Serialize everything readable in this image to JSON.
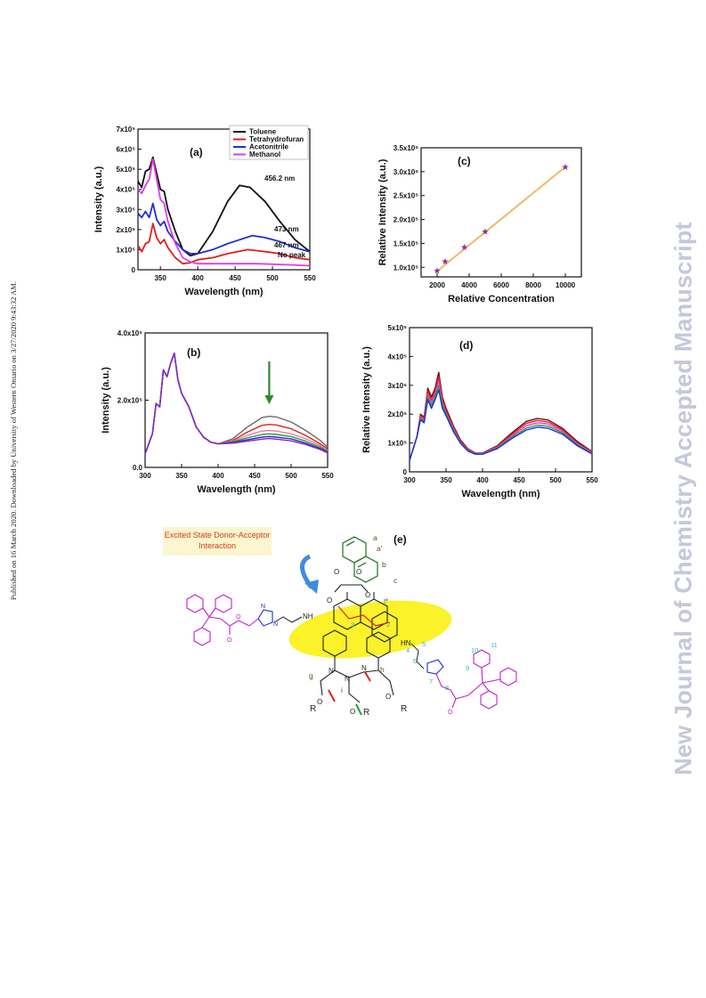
{
  "side_note": "Published on 16 March 2020. Downloaded by University of Western Ontario on 3/27/2020 9:43:32 AM.",
  "watermark": "New Journal of Chemistry Accepted Manuscript",
  "colors": {
    "toluene": "#111111",
    "thf": "#e0201b",
    "acetonitrile": "#1f2fd1",
    "methanol": "#e23be3",
    "linefit": "#f2b867",
    "star": "#8d2a9a",
    "highlight": "#fbf22a",
    "magenta_struct": "#c41fc9",
    "cyan_label": "#2bbcc7"
  },
  "chart_data": [
    {
      "panel": "(a)",
      "type": "line",
      "xlabel": "Wavelength (nm)",
      "ylabel": "Intensity (a.u.)",
      "xlim": [
        320,
        550
      ],
      "ylim": [
        0,
        7
      ],
      "xticks": [
        350,
        400,
        450,
        500,
        550
      ],
      "yticks": [
        0,
        1,
        2,
        3,
        4,
        5,
        6,
        7
      ],
      "ytick_labels": [
        "0",
        "1x10⁵",
        "2x10⁵",
        "3x10⁵",
        "4x10⁵",
        "5x10⁵",
        "6x10⁵",
        "7x10⁵"
      ],
      "legend": [
        "Toluene",
        "Tetrahydrofuran",
        "Acetonitrile",
        "Methanol"
      ],
      "legend_position": "top-center",
      "annotations": [
        "456.2 nm",
        "473 nm",
        "467 nm",
        "No peak"
      ],
      "series": [
        {
          "name": "Toluene",
          "x": [
            320,
            325,
            330,
            335,
            340,
            345,
            350,
            355,
            360,
            370,
            380,
            390,
            400,
            420,
            440,
            456,
            470,
            490,
            510,
            530,
            550
          ],
          "y": [
            4.4,
            4.1,
            4.9,
            5.0,
            5.6,
            4.8,
            4.0,
            3.9,
            3.0,
            1.9,
            1.0,
            0.7,
            0.8,
            1.9,
            3.4,
            4.2,
            4.1,
            3.4,
            2.4,
            1.5,
            0.9
          ]
        },
        {
          "name": "Tetrahydrofuran",
          "x": [
            320,
            325,
            330,
            335,
            340,
            345,
            350,
            355,
            360,
            370,
            380,
            390,
            400,
            420,
            440,
            467,
            490,
            510,
            530,
            550
          ],
          "y": [
            1.2,
            0.9,
            1.3,
            1.4,
            2.3,
            1.6,
            1.3,
            1.5,
            1.1,
            0.6,
            0.3,
            0.35,
            0.5,
            0.6,
            0.8,
            1.0,
            0.9,
            0.8,
            0.6,
            0.5
          ]
        },
        {
          "name": "Acetonitrile",
          "x": [
            320,
            325,
            330,
            335,
            340,
            345,
            350,
            355,
            360,
            370,
            380,
            390,
            400,
            420,
            440,
            473,
            490,
            510,
            530,
            550
          ],
          "y": [
            2.8,
            2.6,
            2.9,
            2.6,
            3.3,
            2.5,
            2.2,
            2.4,
            1.9,
            1.4,
            1.0,
            0.8,
            0.8,
            1.0,
            1.3,
            1.7,
            1.6,
            1.4,
            1.1,
            0.9
          ]
        },
        {
          "name": "Methanol",
          "x": [
            320,
            325,
            330,
            335,
            340,
            345,
            350,
            355,
            360,
            370,
            380,
            390,
            400,
            440,
            480,
            520,
            550
          ],
          "y": [
            4.0,
            3.8,
            4.2,
            4.5,
            5.5,
            4.5,
            3.5,
            3.3,
            2.4,
            1.3,
            0.6,
            0.4,
            0.3,
            0.3,
            0.3,
            0.25,
            0.2
          ]
        }
      ]
    },
    {
      "panel": "(b)",
      "type": "line",
      "xlabel": "Wavelength (nm)",
      "ylabel": "Intensity (a.u.)",
      "xlim": [
        300,
        550
      ],
      "ylim": [
        0,
        4
      ],
      "xticks": [
        300,
        350,
        400,
        450,
        500,
        550
      ],
      "yticks": [
        0,
        2,
        4
      ],
      "ytick_labels": [
        "0.0",
        "2.0x10⁵",
        "4.0x10⁵"
      ],
      "annotations": [
        "downward arrow at 470 nm"
      ],
      "series": [
        {
          "x": [
            300,
            310,
            315,
            320,
            325,
            330,
            335,
            340,
            345,
            350,
            360,
            370,
            380,
            390,
            400,
            420,
            440,
            460,
            470,
            480,
            500,
            520,
            540,
            550
          ],
          "y": [
            0.4,
            1.0,
            1.9,
            1.8,
            2.9,
            2.7,
            3.1,
            3.4,
            2.6,
            2.2,
            1.8,
            1.2,
            0.9,
            0.75,
            0.7,
            0.85,
            1.2,
            1.48,
            1.52,
            1.5,
            1.35,
            1.1,
            0.8,
            0.6
          ]
        },
        {
          "x": [
            300,
            310,
            315,
            320,
            325,
            330,
            335,
            340,
            345,
            350,
            360,
            370,
            380,
            390,
            400,
            420,
            440,
            460,
            470,
            480,
            500,
            520,
            540,
            550
          ],
          "y": [
            0.4,
            1.0,
            1.9,
            1.8,
            2.9,
            2.7,
            3.1,
            3.4,
            2.6,
            2.2,
            1.8,
            1.2,
            0.9,
            0.75,
            0.7,
            0.8,
            1.05,
            1.25,
            1.28,
            1.26,
            1.15,
            0.95,
            0.7,
            0.55
          ]
        },
        {
          "x": [
            300,
            310,
            315,
            320,
            325,
            330,
            335,
            340,
            345,
            350,
            360,
            370,
            380,
            390,
            400,
            420,
            440,
            460,
            470,
            480,
            500,
            520,
            540,
            550
          ],
          "y": [
            0.4,
            1.0,
            1.9,
            1.8,
            2.9,
            2.7,
            3.1,
            3.4,
            2.6,
            2.2,
            1.8,
            1.2,
            0.9,
            0.75,
            0.7,
            0.78,
            0.95,
            1.08,
            1.1,
            1.08,
            1.0,
            0.85,
            0.65,
            0.5
          ]
        },
        {
          "x": [
            300,
            310,
            315,
            320,
            325,
            330,
            335,
            340,
            345,
            350,
            360,
            370,
            380,
            390,
            400,
            420,
            440,
            460,
            470,
            480,
            500,
            520,
            540,
            550
          ],
          "y": [
            0.4,
            1.0,
            1.9,
            1.8,
            2.9,
            2.7,
            3.1,
            3.4,
            2.6,
            2.2,
            1.8,
            1.2,
            0.9,
            0.75,
            0.7,
            0.76,
            0.88,
            0.98,
            1.0,
            0.98,
            0.92,
            0.78,
            0.6,
            0.48
          ]
        },
        {
          "x": [
            300,
            310,
            315,
            320,
            325,
            330,
            335,
            340,
            345,
            350,
            360,
            370,
            380,
            390,
            400,
            420,
            440,
            460,
            470,
            480,
            500,
            520,
            540,
            550
          ],
          "y": [
            0.4,
            1.0,
            1.9,
            1.8,
            2.9,
            2.7,
            3.1,
            3.4,
            2.6,
            2.2,
            1.8,
            1.2,
            0.9,
            0.75,
            0.7,
            0.74,
            0.82,
            0.9,
            0.92,
            0.9,
            0.85,
            0.72,
            0.56,
            0.45
          ]
        },
        {
          "x": [
            300,
            310,
            315,
            320,
            325,
            330,
            335,
            340,
            345,
            350,
            360,
            370,
            380,
            390,
            400,
            420,
            440,
            460,
            470,
            480,
            500,
            520,
            540,
            550
          ],
          "y": [
            0.4,
            1.0,
            1.9,
            1.8,
            2.9,
            2.7,
            3.1,
            3.4,
            2.6,
            2.2,
            1.8,
            1.2,
            0.9,
            0.75,
            0.7,
            0.72,
            0.78,
            0.84,
            0.86,
            0.84,
            0.79,
            0.68,
            0.53,
            0.43
          ]
        }
      ],
      "series_colors": [
        "#6b6b6b",
        "#e0201b",
        "#e87aa8",
        "#2b9c35",
        "#1f2fd1",
        "#8c26c2"
      ]
    },
    {
      "panel": "(c)",
      "type": "scatter",
      "xlabel": "Relative Concentration",
      "ylabel": "Relative Intensity (a.u.)",
      "xlim": [
        1000,
        11000
      ],
      "ylim": [
        0.8,
        3.5
      ],
      "xticks": [
        2000,
        4000,
        6000,
        8000,
        10000
      ],
      "yticks": [
        1.0,
        1.5,
        2.0,
        2.5,
        3.0,
        3.5
      ],
      "ytick_labels": [
        "1.0x10⁵",
        "1.5x10⁵",
        "2.0x10⁵",
        "2.5x10⁵",
        "3.0x10⁵",
        "3.5x10⁵"
      ],
      "x": [
        2000,
        2500,
        3700,
        5000,
        10000
      ],
      "y": [
        0.93,
        1.13,
        1.42,
        1.75,
        3.1
      ],
      "fit_line": {
        "x": [
          2000,
          10000
        ],
        "y": [
          0.92,
          3.1
        ]
      }
    },
    {
      "panel": "(d)",
      "type": "line",
      "xlabel": "Wavelength (nm)",
      "ylabel": "Relative Intensity (a.u.)",
      "xlim": [
        300,
        550
      ],
      "ylim": [
        0,
        5
      ],
      "xticks": [
        300,
        350,
        400,
        450,
        500,
        550
      ],
      "yticks": [
        0,
        1,
        2,
        3,
        4,
        5
      ],
      "ytick_labels": [
        "0",
        "1x10⁵",
        "2x10⁵",
        "3x10⁵",
        "4x10⁵",
        "5x10⁵"
      ],
      "series": [
        {
          "x": [
            300,
            310,
            315,
            320,
            325,
            330,
            335,
            340,
            345,
            350,
            360,
            370,
            380,
            390,
            400,
            420,
            440,
            460,
            475,
            490,
            510,
            530,
            550
          ],
          "y": [
            0.4,
            1.2,
            2.0,
            1.9,
            2.9,
            2.6,
            2.9,
            3.45,
            2.6,
            2.2,
            1.6,
            1.1,
            0.8,
            0.65,
            0.65,
            0.9,
            1.35,
            1.75,
            1.85,
            1.8,
            1.5,
            1.05,
            0.7
          ]
        },
        {
          "x": [
            300,
            310,
            315,
            320,
            325,
            330,
            335,
            340,
            345,
            350,
            360,
            370,
            380,
            390,
            400,
            420,
            440,
            460,
            475,
            490,
            510,
            530,
            550
          ],
          "y": [
            0.4,
            1.2,
            1.95,
            1.85,
            2.8,
            2.5,
            2.8,
            3.3,
            2.5,
            2.1,
            1.55,
            1.05,
            0.78,
            0.64,
            0.64,
            0.88,
            1.3,
            1.68,
            1.78,
            1.73,
            1.45,
            1.0,
            0.68
          ]
        },
        {
          "x": [
            300,
            310,
            315,
            320,
            325,
            330,
            335,
            340,
            345,
            350,
            360,
            370,
            380,
            390,
            400,
            420,
            440,
            460,
            475,
            490,
            510,
            530,
            550
          ],
          "y": [
            0.4,
            1.2,
            1.9,
            1.8,
            2.7,
            2.4,
            2.7,
            3.15,
            2.4,
            2.05,
            1.5,
            1.02,
            0.76,
            0.63,
            0.63,
            0.85,
            1.25,
            1.6,
            1.7,
            1.66,
            1.4,
            0.97,
            0.66
          ]
        },
        {
          "x": [
            300,
            310,
            315,
            320,
            325,
            330,
            335,
            340,
            345,
            350,
            360,
            370,
            380,
            390,
            400,
            420,
            440,
            460,
            475,
            490,
            510,
            530,
            550
          ],
          "y": [
            0.4,
            1.2,
            1.85,
            1.75,
            2.6,
            2.3,
            2.6,
            3.0,
            2.3,
            2.0,
            1.45,
            1.0,
            0.74,
            0.62,
            0.62,
            0.82,
            1.2,
            1.52,
            1.62,
            1.58,
            1.35,
            0.94,
            0.64
          ]
        },
        {
          "x": [
            300,
            310,
            315,
            320,
            325,
            330,
            335,
            340,
            345,
            350,
            360,
            370,
            380,
            390,
            400,
            420,
            440,
            460,
            475,
            490,
            510,
            530,
            550
          ],
          "y": [
            0.4,
            1.2,
            1.8,
            1.7,
            2.5,
            2.2,
            2.5,
            2.85,
            2.2,
            1.95,
            1.4,
            0.98,
            0.72,
            0.61,
            0.61,
            0.8,
            1.15,
            1.45,
            1.55,
            1.51,
            1.3,
            0.9,
            0.62
          ]
        }
      ],
      "series_colors": [
        "#6b1010",
        "#e0201b",
        "#e23be3",
        "#2b9c35",
        "#1f2fd1"
      ]
    }
  ],
  "panel_e": {
    "letter": "(e)",
    "callout": [
      "Excited State Donor-Acceptor",
      "Interaction"
    ],
    "atom_labels": [
      "a",
      "a'",
      "b",
      "c",
      "d",
      "e",
      "f",
      "g",
      "h",
      "i"
    ],
    "number_labels": [
      "1",
      "2",
      "3",
      "4",
      "5",
      "6",
      "7",
      "8",
      "9",
      "10",
      "11"
    ],
    "r_groups": [
      "R",
      "R",
      "R"
    ],
    "heteroatoms": [
      "O",
      "O",
      "O",
      "O",
      "N",
      "N",
      "N",
      "N",
      "N",
      "NH",
      "HN",
      "O",
      "O",
      "O",
      "O",
      "O",
      "O"
    ]
  }
}
